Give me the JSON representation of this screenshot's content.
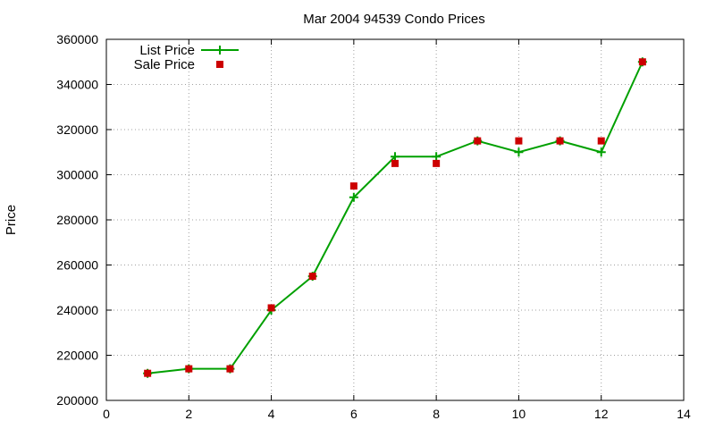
{
  "chart_data": {
    "type": "line",
    "title": "Mar 2004 94539 Condo Prices",
    "xlabel": "",
    "ylabel": "Price",
    "xlim": [
      0,
      14
    ],
    "ylim": [
      200000,
      360000
    ],
    "xticks": [
      0,
      2,
      4,
      6,
      8,
      10,
      12,
      14
    ],
    "yticks": [
      200000,
      220000,
      240000,
      260000,
      280000,
      300000,
      320000,
      340000,
      360000
    ],
    "grid": true,
    "legend_position": "top-left",
    "series": [
      {
        "name": "List Price",
        "style": "line-plus",
        "color": "#00a000",
        "x": [
          1,
          2,
          3,
          4,
          5,
          6,
          7,
          8,
          9,
          10,
          11,
          12,
          13
        ],
        "y": [
          212000,
          214000,
          214000,
          240000,
          255000,
          290000,
          308000,
          308000,
          315000,
          310000,
          315000,
          310000,
          350000
        ]
      },
      {
        "name": "Sale Price",
        "style": "square-points",
        "color": "#cc0000",
        "x": [
          1,
          2,
          3,
          4,
          5,
          6,
          7,
          8,
          9,
          10,
          11,
          12,
          13
        ],
        "y": [
          212000,
          214000,
          214000,
          241000,
          255000,
          295000,
          305000,
          305000,
          315000,
          315000,
          315000,
          315000,
          350000
        ]
      }
    ]
  }
}
